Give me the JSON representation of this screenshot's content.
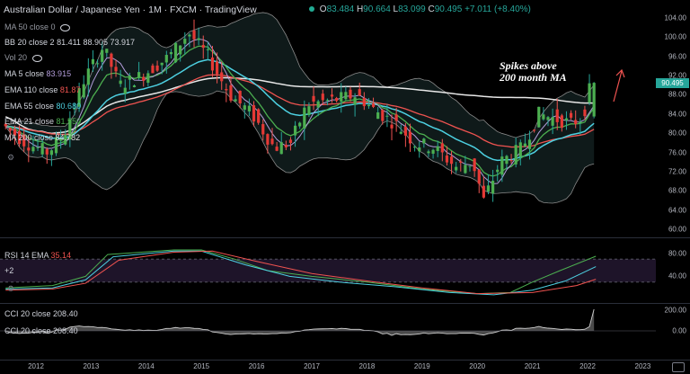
{
  "header": {
    "title": "Australian Dollar / Japanese Yen · 1M · FXCM · TradingView",
    "dot_color": "#22ab94",
    "open_label": "O",
    "open": "83.484",
    "high_label": "H",
    "high": "90.664",
    "low_label": "L",
    "low": "83.099",
    "close_label": "C",
    "close": "90.495",
    "change": "+7.011 (+8.40%)",
    "up_color": "#26a69a"
  },
  "legend": {
    "ma50": {
      "label": "MA 50 close 0",
      "value": ""
    },
    "bb": {
      "label": "BB 20 close 2",
      "v1": "81.411",
      "v2": "88.905",
      "v3": "73.917",
      "color": "#a5a5a5"
    },
    "vol": {
      "label": "Vol 20",
      "value": ""
    },
    "ma5": {
      "label": "MA 5 close",
      "value": "83.915",
      "color": "#b39ddb"
    },
    "ema110": {
      "label": "EMA 110 close",
      "value": "81.87",
      "color": "#ef5350"
    },
    "ema55": {
      "label": "EMA 55 close",
      "value": "80.680",
      "color": "#4dd0e1"
    },
    "ema21": {
      "label": "EMA 21 close",
      "value": "81.550",
      "color": "#4caf50"
    },
    "ma200": {
      "label": "MA 200 close",
      "value": "84.782",
      "color": "#e0e0e0"
    }
  },
  "annotation": {
    "line1": "Spikes above",
    "line2": "200 month MA"
  },
  "price_axis": {
    "ticks": [
      "104.00",
      "100.00",
      "96.00",
      "92.00",
      "88.00",
      "84.00",
      "80.00",
      "76.00",
      "72.00",
      "68.00",
      "64.00",
      "60.00"
    ],
    "last_price": "90.495",
    "last_price_color": "#26a69a"
  },
  "rsi": {
    "label": "RSI 14 EMA",
    "value": "35.14",
    "value_color": "#ef5350",
    "extra_label": "+2",
    "ticks": [
      "80.00",
      "40.00"
    ],
    "band_color": "#1e1429"
  },
  "cci1": {
    "label": "CCI 20 close",
    "value": "208.40"
  },
  "cci2": {
    "label": "CCI 20 close",
    "value": "208.40"
  },
  "cci_axis": {
    "ticks": [
      "200.00",
      "0.00"
    ]
  },
  "time_axis": {
    "ticks": [
      "2012",
      "2013",
      "2014",
      "2015",
      "2016",
      "2017",
      "2018",
      "2019",
      "2020",
      "2021",
      "2022",
      "2023"
    ]
  },
  "icons": {
    "gear": "gear-icon",
    "eye": "eye-icon",
    "arrow": "up-arrow-annotation-icon"
  },
  "chart_data": {
    "type": "candlestick",
    "title": "Australian Dollar / Japanese Yen",
    "timeframe": "1M",
    "x_range": [
      "2011-06",
      "2022-03"
    ],
    "ylim": [
      58,
      106
    ],
    "grid": false,
    "last": {
      "open": 83.484,
      "high": 90.664,
      "low": 83.099,
      "close": 90.495
    },
    "series": [
      {
        "name": "MA 200 close",
        "last": 84.782
      },
      {
        "name": "EMA 110 close",
        "last": 81.87
      },
      {
        "name": "EMA 55 close",
        "last": 80.68
      },
      {
        "name": "EMA 21 close",
        "last": 81.55
      },
      {
        "name": "MA 5 close",
        "last": 83.915
      },
      {
        "name": "BB 20 close 2",
        "values": [
          81.411,
          88.905,
          73.917
        ]
      }
    ],
    "rsi": {
      "name": "RSI 14 EMA",
      "last": 35.14,
      "ylim": [
        0,
        100
      ]
    },
    "cci": {
      "name": "CCI 20 close",
      "last": 208.4
    }
  }
}
